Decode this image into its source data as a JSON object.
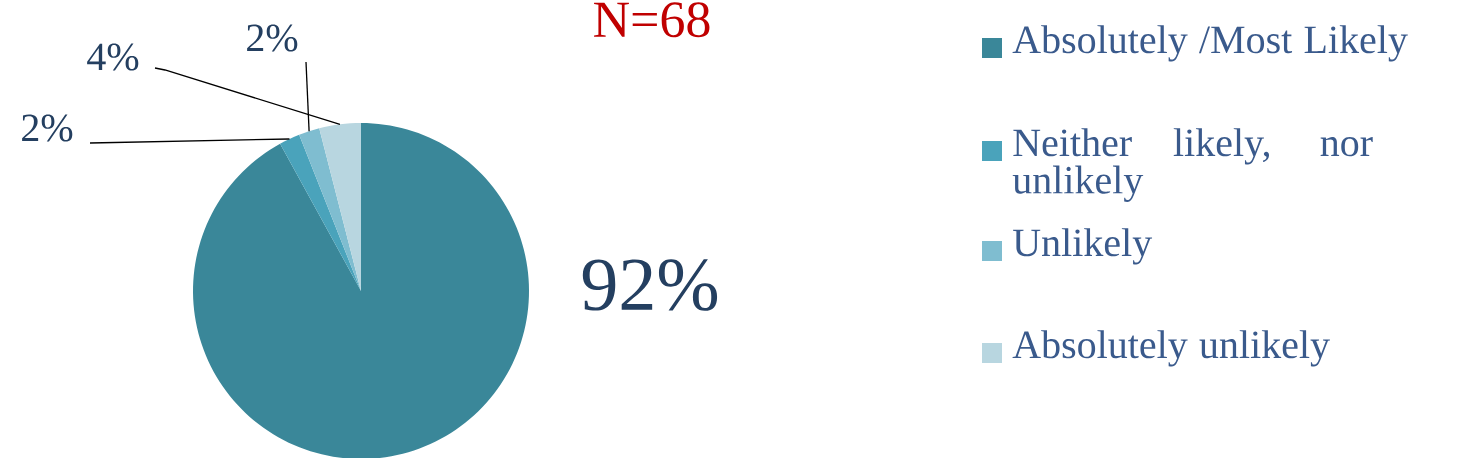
{
  "chart_data": {
    "type": "pie",
    "title": "N=68",
    "categories": [
      "Absolutely /Most Likely",
      "Neither likely, nor unlikely",
      "Unlikely",
      "Absolutely unlikely"
    ],
    "values": [
      92,
      2,
      2,
      4
    ],
    "colors": [
      "#3a8799",
      "#4aa3bb",
      "#7fbdd0",
      "#b8d6e0"
    ],
    "value_labels": [
      "92%",
      "2%",
      "2%",
      "4%"
    ],
    "legend": "right"
  }
}
